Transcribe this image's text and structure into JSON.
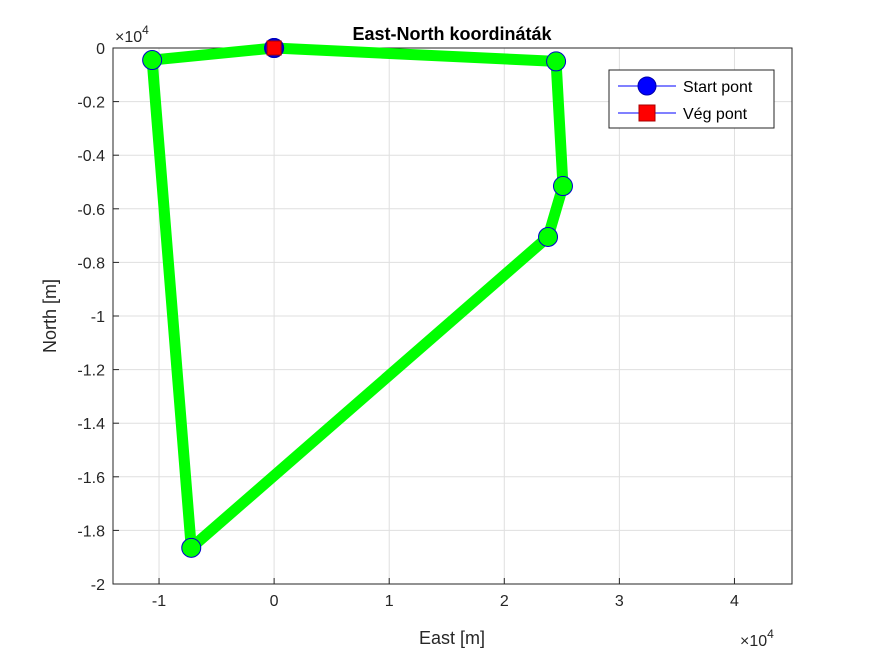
{
  "chart_data": {
    "type": "line",
    "title": "East-North koordináták",
    "xlabel": "East [m]",
    "ylabel": "North [m]",
    "x_exponent_label": "×10",
    "x_exponent": "4",
    "y_exponent_label": "×10",
    "y_exponent": "4",
    "xlim": [
      -1.4,
      4.5
    ],
    "ylim": [
      -2.0,
      0.0
    ],
    "xticks": [
      -1,
      0,
      1,
      2,
      3,
      4
    ],
    "xtick_labels": [
      "-1",
      "0",
      "1",
      "2",
      "3",
      "4"
    ],
    "yticks": [
      0,
      -0.2,
      -0.4,
      -0.6,
      -0.8,
      -1,
      -1.2,
      -1.4,
      -1.6,
      -1.8,
      -2
    ],
    "ytick_labels": [
      "0",
      "-0.2",
      "-0.4",
      "-0.6",
      "-0.8",
      "-1",
      "-1.2",
      "-1.4",
      "-1.6",
      "-1.8",
      "-2"
    ],
    "grid": true,
    "line_color": "#00ff00",
    "marker_color": "#00ff00",
    "marker_edge_color": "#0000cc",
    "points": [
      {
        "x": 0.0,
        "y": 0.0
      },
      {
        "x": 2.45,
        "y": -0.05
      },
      {
        "x": 2.51,
        "y": -0.515
      },
      {
        "x": 2.38,
        "y": -0.705
      },
      {
        "x": -0.72,
        "y": -1.865
      },
      {
        "x": -1.06,
        "y": -0.045
      },
      {
        "x": 0.0,
        "y": 0.0
      }
    ],
    "start": {
      "x": 0.0,
      "y": 0.0,
      "color": "#0000ff"
    },
    "end": {
      "x": 0.0,
      "y": 0.0,
      "color": "#ff0000"
    },
    "legend": {
      "placement": "top-right",
      "entries": [
        {
          "label": "Start pont",
          "marker": "circle",
          "color": "#0000ff"
        },
        {
          "label": "Vég pont",
          "marker": "square",
          "color": "#ff0000"
        }
      ]
    }
  }
}
